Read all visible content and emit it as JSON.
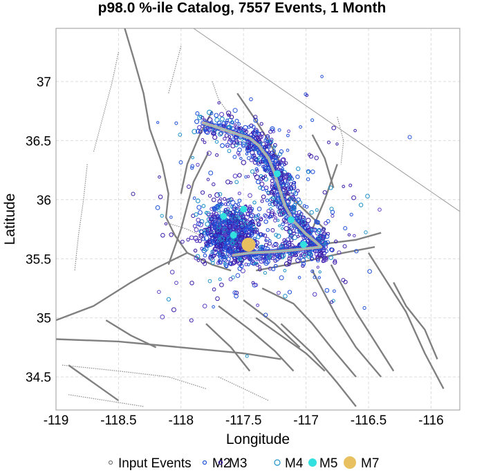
{
  "chart_data": {
    "type": "scatter",
    "title": "p98.0 %-ile Catalog, 7557 Events, 1 Month",
    "xlabel": "Longitude",
    "ylabel": "Latitude",
    "xlim": [
      -119.0,
      -115.77
    ],
    "ylim": [
      34.22,
      37.45
    ],
    "xticks": [
      -119,
      -118.5,
      -118,
      -117.5,
      -117,
      -116.5,
      -116
    ],
    "xtick_labels": [
      "-119",
      "-118.5",
      "-118",
      "-117.5",
      "-117",
      "-116.5",
      "-116"
    ],
    "yticks": [
      34.5,
      35,
      35.5,
      36,
      36.5,
      37
    ],
    "ytick_labels": [
      "34.5",
      "35",
      "35.5",
      "36",
      "36.5",
      "37"
    ],
    "grid": true,
    "legend_position": "bottom",
    "legend": [
      {
        "label": "Input Events",
        "marker": "circle-open",
        "color": "#777777"
      },
      {
        "label": "M2",
        "marker": "circle-open",
        "color": "#1f4fd8"
      },
      {
        "label": "M3",
        "marker": "circle-open",
        "color": "#3a1aa8"
      },
      {
        "label": "M4",
        "marker": "circle-open",
        "color": "#1e90c8"
      },
      {
        "label": "M5",
        "marker": "circle-filled",
        "color": "#33e0e0"
      },
      {
        "label": "M7",
        "marker": "circle-filled",
        "color": "#e8c060"
      }
    ],
    "notable_events": [
      {
        "magnitude_class": "M7",
        "lon": -117.46,
        "lat": 35.62,
        "color": "#e8c060"
      },
      {
        "magnitude_class": "M5",
        "lon": -117.5,
        "lat": 35.92,
        "color": "#33e0e0"
      },
      {
        "magnitude_class": "M5",
        "lon": -117.58,
        "lat": 35.7,
        "color": "#33e0e0"
      },
      {
        "magnitude_class": "M5",
        "lon": -117.66,
        "lat": 35.86,
        "color": "#33e0e0"
      },
      {
        "magnitude_class": "M5",
        "lon": -117.23,
        "lat": 36.22,
        "color": "#33e0e0"
      },
      {
        "magnitude_class": "M5",
        "lon": -117.02,
        "lat": 35.62,
        "color": "#33e0e0"
      },
      {
        "magnitude_class": "M5",
        "lon": -117.12,
        "lat": 35.83,
        "color": "#33e0e0"
      }
    ],
    "rupture_trace": [
      [
        -117.82,
        36.65
      ],
      [
        -117.62,
        36.58
      ],
      [
        -117.45,
        36.52
      ],
      [
        -117.38,
        36.46
      ],
      [
        -117.3,
        36.35
      ],
      [
        -117.25,
        36.22
      ],
      [
        -117.21,
        36.08
      ],
      [
        -117.17,
        35.95
      ],
      [
        -117.1,
        35.82
      ],
      [
        -117.0,
        35.71
      ],
      [
        -116.92,
        35.64
      ],
      [
        -116.88,
        35.6
      ],
      [
        -117.05,
        35.58
      ],
      [
        -117.25,
        35.56
      ],
      [
        -117.45,
        35.55
      ],
      [
        -117.58,
        35.53
      ]
    ],
    "faults": [
      [
        [
          -119.0,
          34.98
        ],
        [
          -118.7,
          35.1
        ],
        [
          -118.4,
          35.3
        ],
        [
          -118.2,
          35.42
        ],
        [
          -117.95,
          35.55
        ]
      ],
      [
        [
          -117.95,
          35.55
        ],
        [
          -118.05,
          35.7
        ],
        [
          -118.12,
          35.85
        ],
        [
          -118.1,
          36.05
        ],
        [
          -118.15,
          36.3
        ],
        [
          -118.25,
          36.6
        ],
        [
          -118.3,
          36.9
        ],
        [
          -118.38,
          37.2
        ],
        [
          -118.45,
          37.45
        ]
      ],
      [
        [
          -118.1,
          35.45
        ],
        [
          -118.0,
          35.75
        ],
        [
          -117.95,
          35.95
        ],
        [
          -117.9,
          36.15
        ],
        [
          -117.78,
          36.4
        ]
      ],
      [
        [
          -119.0,
          34.82
        ],
        [
          -118.5,
          34.8
        ],
        [
          -118.0,
          34.75
        ],
        [
          -117.5,
          34.7
        ],
        [
          -117.2,
          34.65
        ]
      ],
      [
        [
          -117.6,
          35.52
        ],
        [
          -117.2,
          35.58
        ],
        [
          -116.9,
          35.62
        ],
        [
          -116.6,
          35.66
        ],
        [
          -116.4,
          35.72
        ]
      ],
      [
        [
          -117.4,
          35.4
        ],
        [
          -117.0,
          35.48
        ],
        [
          -116.7,
          35.55
        ],
        [
          -116.45,
          35.6
        ]
      ],
      [
        [
          -117.35,
          35.25
        ],
        [
          -117.1,
          35.12
        ],
        [
          -116.95,
          34.95
        ],
        [
          -116.8,
          34.75
        ],
        [
          -116.6,
          34.5
        ]
      ],
      [
        [
          -117.7,
          35.1
        ],
        [
          -117.45,
          34.9
        ],
        [
          -117.25,
          34.72
        ],
        [
          -117.1,
          34.55
        ]
      ],
      [
        [
          -116.95,
          35.4
        ],
        [
          -116.85,
          35.2
        ],
        [
          -116.75,
          35.0
        ],
        [
          -116.6,
          34.75
        ],
        [
          -116.4,
          34.5
        ]
      ],
      [
        [
          -116.8,
          35.45
        ],
        [
          -116.7,
          35.25
        ],
        [
          -116.6,
          35.05
        ],
        [
          -116.45,
          34.8
        ],
        [
          -116.3,
          34.55
        ]
      ],
      [
        [
          -116.5,
          35.55
        ],
        [
          -116.35,
          35.3
        ],
        [
          -116.2,
          35.05
        ],
        [
          -116.05,
          34.7
        ],
        [
          -115.9,
          34.4
        ]
      ],
      [
        [
          -117.2,
          34.95
        ],
        [
          -116.95,
          34.7
        ],
        [
          -116.75,
          34.45
        ],
        [
          -116.6,
          34.25
        ]
      ],
      [
        [
          -118.0,
          36.05
        ],
        [
          -117.95,
          36.3
        ],
        [
          -117.85,
          36.55
        ],
        [
          -117.75,
          36.75
        ]
      ],
      [
        [
          -117.55,
          36.9
        ],
        [
          -117.42,
          36.7
        ],
        [
          -117.3,
          36.5
        ],
        [
          -117.2,
          36.3
        ]
      ],
      [
        [
          -117.15,
          36.05
        ],
        [
          -117.0,
          35.9
        ],
        [
          -116.85,
          35.75
        ]
      ],
      [
        [
          -116.75,
          36.3
        ],
        [
          -116.85,
          36.0
        ],
        [
          -116.95,
          35.75
        ]
      ],
      [
        [
          -117.4,
          35.0
        ],
        [
          -117.2,
          34.85
        ],
        [
          -117.0,
          34.7
        ],
        [
          -116.85,
          34.55
        ]
      ],
      [
        [
          -117.5,
          35.15
        ],
        [
          -117.25,
          34.95
        ],
        [
          -117.05,
          34.75
        ]
      ],
      [
        [
          -117.8,
          34.95
        ],
        [
          -117.6,
          34.75
        ],
        [
          -117.45,
          34.55
        ]
      ],
      [
        [
          -118.9,
          34.6
        ],
        [
          -118.7,
          34.45
        ],
        [
          -118.5,
          34.3
        ]
      ],
      [
        [
          -117.95,
          35.55
        ],
        [
          -117.75,
          35.45
        ],
        [
          -117.6,
          35.4
        ]
      ],
      [
        [
          -116.95,
          36.55
        ],
        [
          -116.85,
          36.35
        ],
        [
          -116.78,
          36.1
        ]
      ],
      [
        [
          -116.3,
          35.3
        ],
        [
          -116.2,
          35.1
        ],
        [
          -116.05,
          34.9
        ],
        [
          -115.95,
          34.65
        ]
      ],
      [
        [
          -118.6,
          34.98
        ],
        [
          -118.4,
          34.85
        ],
        [
          -118.2,
          34.75
        ]
      ]
    ],
    "dotted_faults": [
      [
        [
          -118.5,
          37.25
        ],
        [
          -118.55,
          37.0
        ],
        [
          -118.6,
          36.8
        ],
        [
          -118.65,
          36.6
        ],
        [
          -118.7,
          36.4
        ]
      ],
      [
        [
          -118.75,
          36.3
        ],
        [
          -118.78,
          36.0
        ],
        [
          -118.82,
          35.7
        ],
        [
          -118.85,
          35.4
        ]
      ],
      [
        [
          -118.0,
          37.3
        ],
        [
          -118.05,
          37.1
        ],
        [
          -118.1,
          36.9
        ]
      ],
      [
        [
          -117.75,
          37.0
        ],
        [
          -117.7,
          36.85
        ],
        [
          -117.6,
          36.7
        ]
      ],
      [
        [
          -116.75,
          36.7
        ],
        [
          -116.7,
          36.5
        ],
        [
          -116.72,
          36.3
        ]
      ],
      [
        [
          -118.95,
          34.6
        ],
        [
          -118.5,
          34.55
        ],
        [
          -118.1,
          34.5
        ],
        [
          -117.8,
          34.4
        ]
      ],
      [
        [
          -118.9,
          34.35
        ],
        [
          -118.6,
          34.3
        ],
        [
          -118.3,
          34.25
        ]
      ],
      [
        [
          -117.7,
          34.5
        ],
        [
          -117.5,
          34.4
        ],
        [
          -117.3,
          34.3
        ]
      ],
      [
        [
          -118.1,
          35.8
        ],
        [
          -117.95,
          35.75
        ],
        [
          -117.85,
          35.7
        ]
      ]
    ],
    "boundary_line": [
      [
        -117.9,
        37.45
      ],
      [
        -115.77,
        35.9
      ]
    ]
  }
}
